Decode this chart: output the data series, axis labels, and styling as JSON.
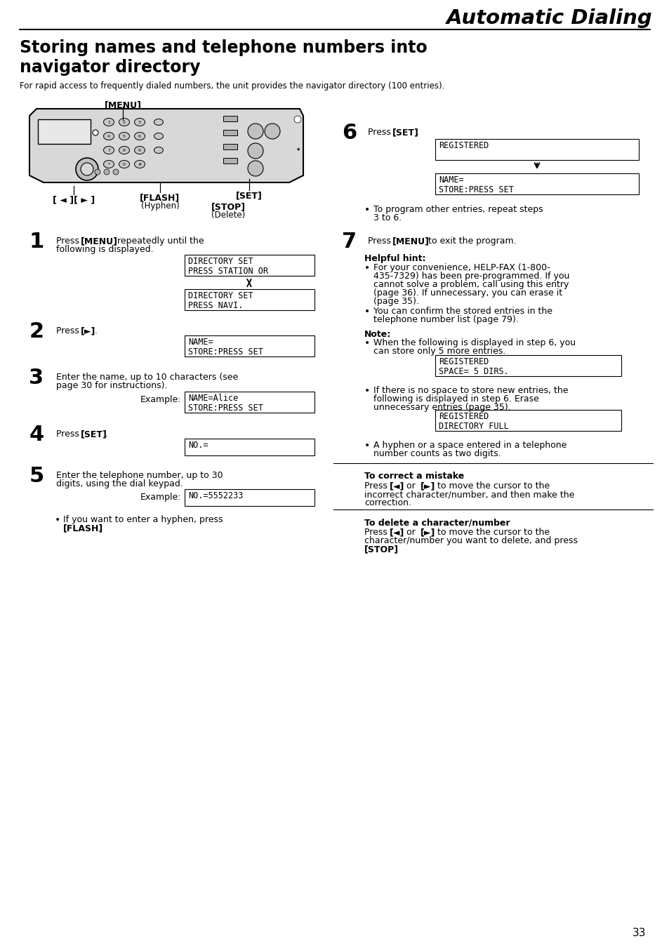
{
  "title": "Automatic Dialing",
  "section_title_line1": "Storing names and telephone numbers into",
  "section_title_line2": "navigator directory",
  "intro": "For rapid access to frequently dialed numbers, the unit provides the navigator directory (100 entries).",
  "step1_box1_line1": "DIRECTORY SET",
  "step1_box1_line2": "PRESS STATION OR",
  "step1_box2_line1": "DIRECTORY SET",
  "step1_box2_line2": "PRESS NAVI.",
  "step2_box_line1": "NAME=",
  "step2_box_line2": "STORE:PRESS SET",
  "step3_box_line1": "NAME=Alice",
  "step3_box_line2": "STORE:PRESS SET",
  "step4_box": "NO.=",
  "step5_box": "NO.=5552233",
  "step6_box1": "REGISTERED",
  "step6_box2_line1": "NAME=",
  "step6_box2_line2": "STORE:PRESS SET",
  "note_box1_line1": "REGISTERED",
  "note_box1_line2": "SPACE= 5 DIRS.",
  "note_box2_line1": "REGISTERED",
  "note_box2_line2": "DIRECTORY FULL",
  "page_num": "33"
}
